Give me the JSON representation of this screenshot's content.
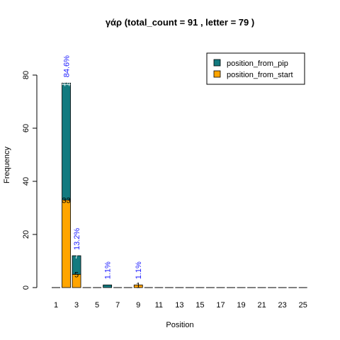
{
  "chart_data": {
    "type": "bar",
    "stacked": true,
    "title": "γάρ  (total_count =  91 , letter = 79 )",
    "xlabel": "Position",
    "ylabel": "Frequency",
    "ylim": [
      0,
      85
    ],
    "yticks": [
      0,
      20,
      40,
      60,
      80
    ],
    "categories": [
      1,
      2,
      3,
      4,
      5,
      6,
      7,
      8,
      9,
      10,
      11,
      12,
      13,
      14,
      15,
      16,
      17,
      18,
      19,
      20,
      21,
      22,
      23,
      24,
      25
    ],
    "xtick_labels": [
      "1",
      "3",
      "5",
      "7",
      "9",
      "11",
      "13",
      "15",
      "17",
      "19",
      "21",
      "23",
      "25"
    ],
    "series": [
      {
        "name": "position_from_start",
        "color": "#FFA500",
        "values": [
          0,
          33,
          5,
          0,
          0,
          0,
          0,
          0,
          1,
          0,
          0,
          0,
          0,
          0,
          0,
          0,
          0,
          0,
          0,
          0,
          0,
          0,
          0,
          0,
          0
        ]
      },
      {
        "name": "position_from_pip",
        "color": "#137A7F",
        "values": [
          0,
          44,
          7,
          0,
          0,
          1,
          0,
          0,
          0,
          0,
          0,
          0,
          0,
          0,
          0,
          0,
          0,
          0,
          0,
          0,
          0,
          0,
          0,
          0,
          0
        ]
      }
    ],
    "segment_labels": [
      {
        "category": 2,
        "series": "position_from_start",
        "text": "33"
      },
      {
        "category": 2,
        "series": "position_from_pip",
        "text": "44"
      },
      {
        "category": 3,
        "series": "position_from_start",
        "text": "5"
      },
      {
        "category": 3,
        "series": "position_from_pip",
        "text": "7"
      },
      {
        "category": 9,
        "series": "position_from_start",
        "text": "1"
      }
    ],
    "percent_labels": [
      {
        "category": 2,
        "text": "84.6%"
      },
      {
        "category": 3,
        "text": "13.2%"
      },
      {
        "category": 6,
        "text": "1.1%"
      },
      {
        "category": 9,
        "text": "1.1%"
      }
    ],
    "legend": {
      "position": "top-right",
      "entries": [
        {
          "label": "position_from_pip",
          "color": "#137A7F"
        },
        {
          "label": "position_from_start",
          "color": "#FFA500"
        }
      ]
    },
    "grid": false
  }
}
